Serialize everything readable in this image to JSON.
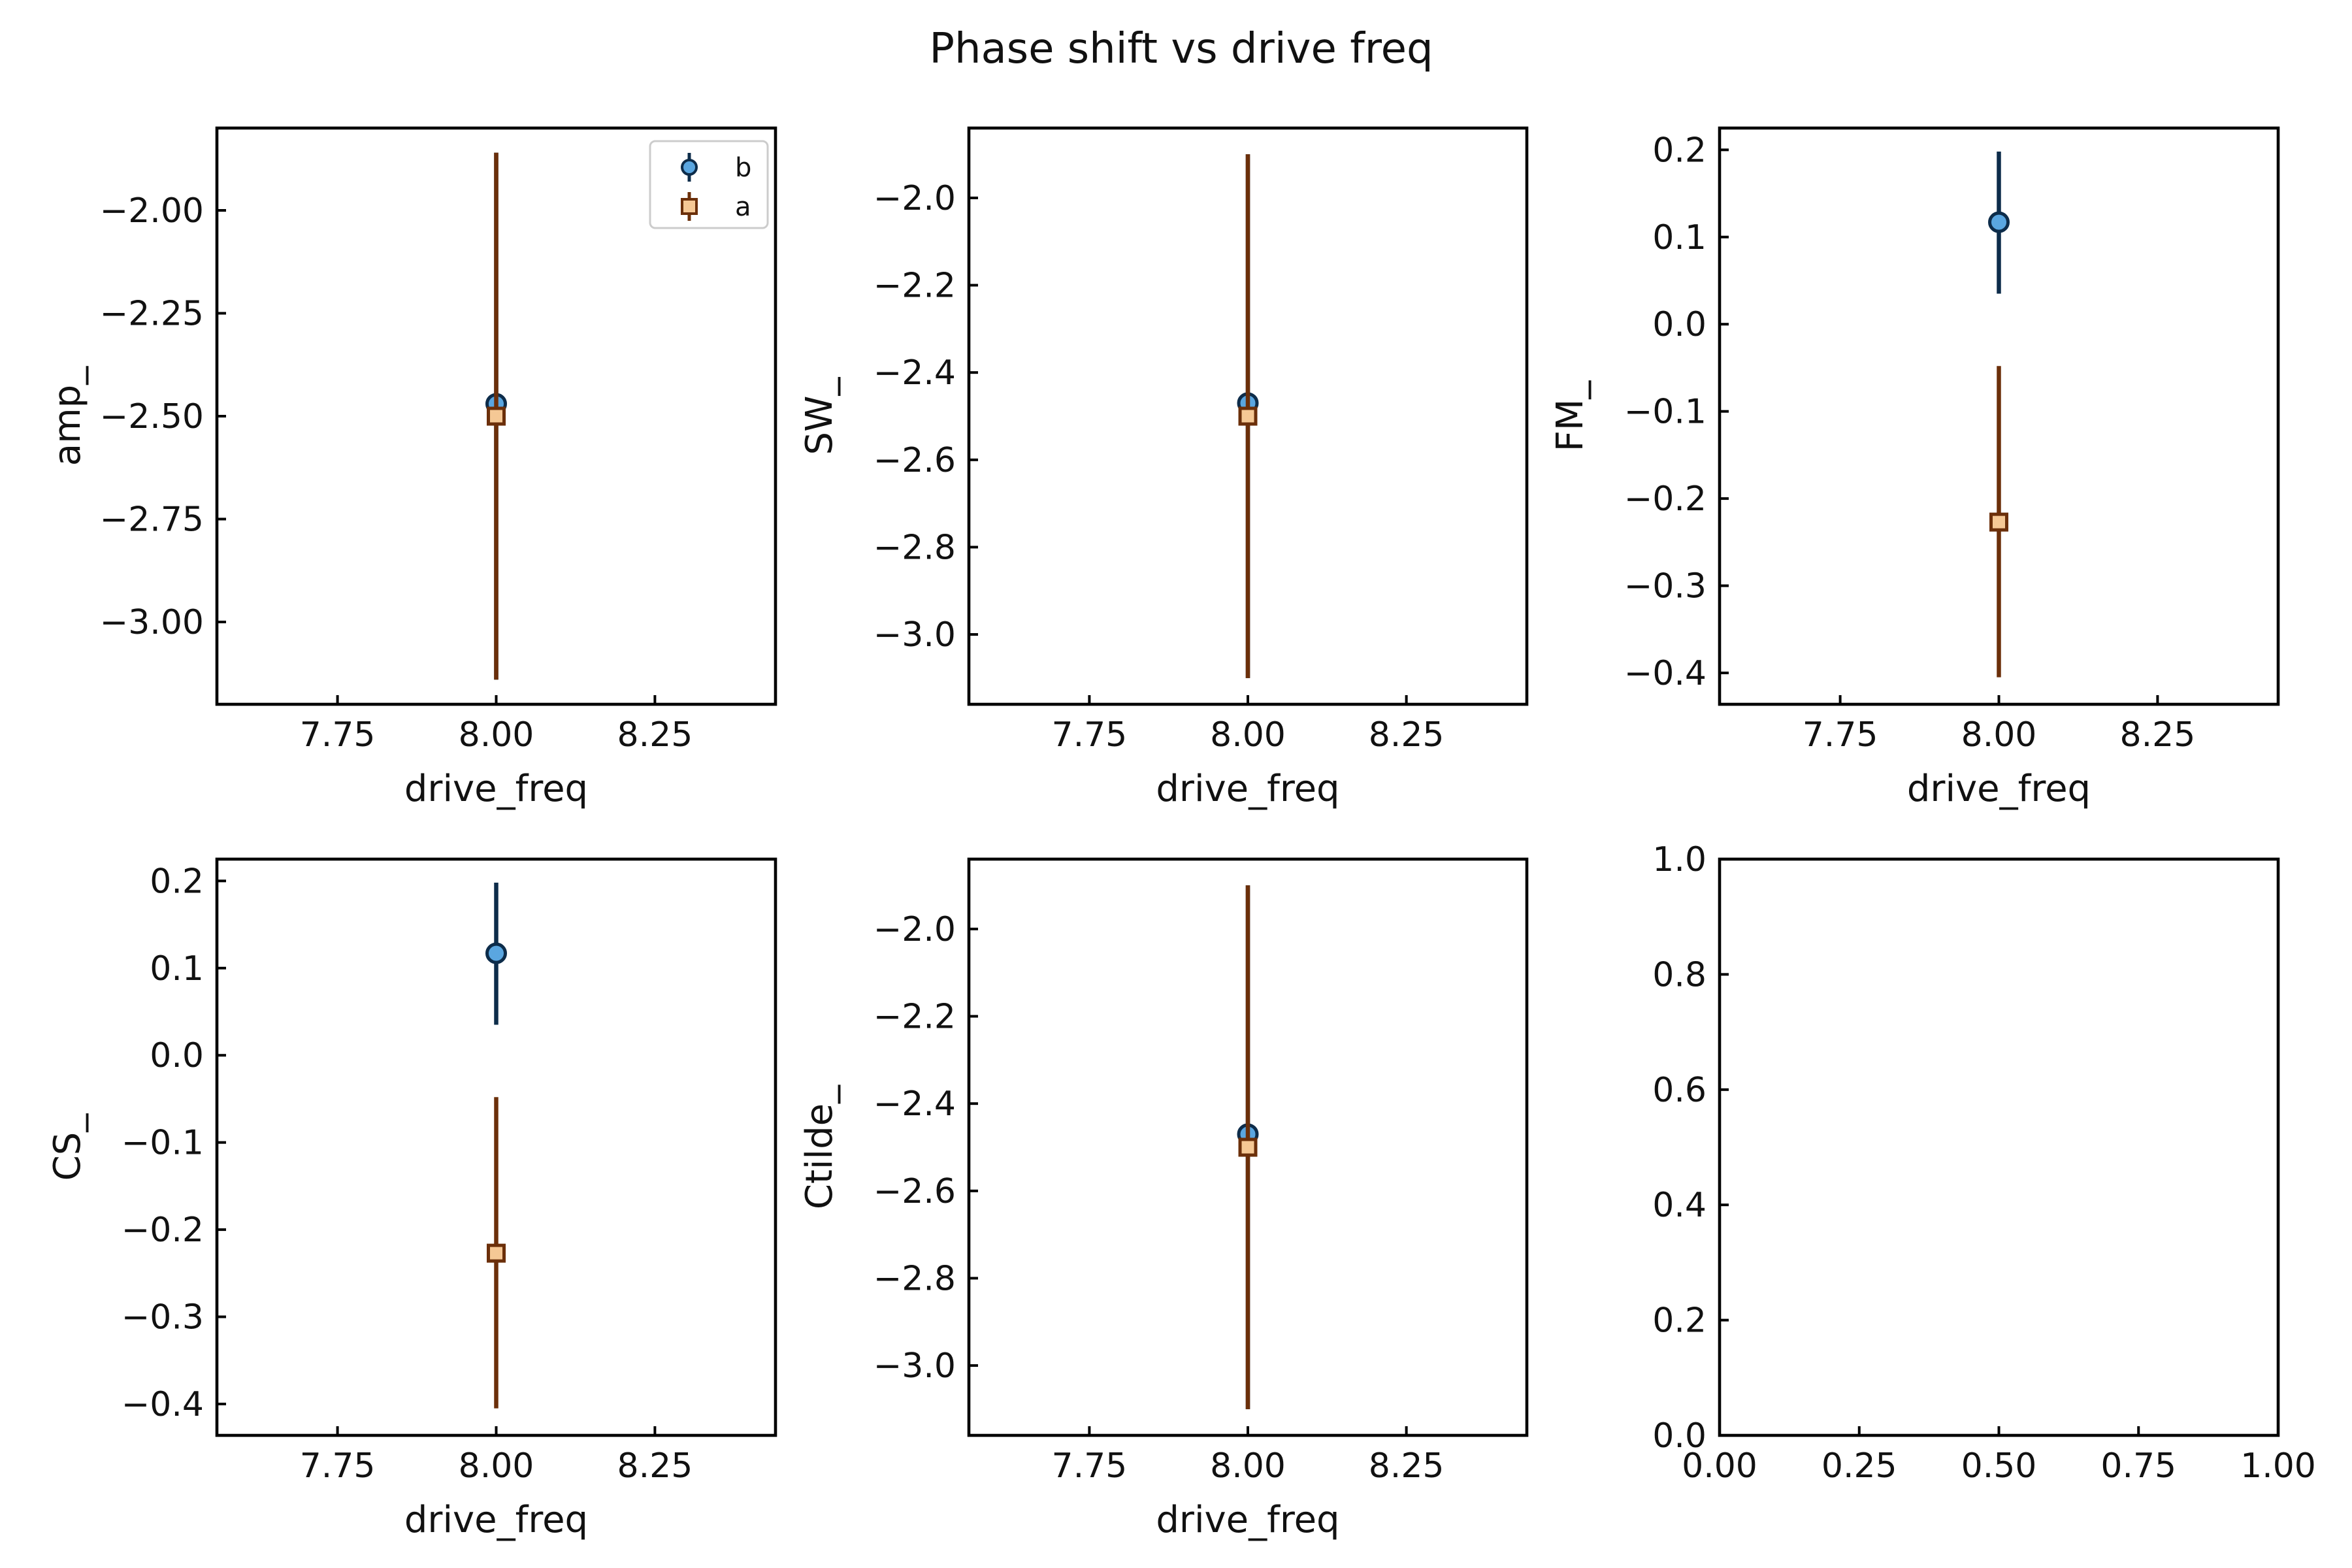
{
  "figure": {
    "title": "Phase shift vs drive freq"
  },
  "colors": {
    "series_b_line": "#0d2c4a",
    "series_b_fill": "#5aa6e0",
    "series_a_line": "#6b2f0a",
    "series_a_fill": "#f5c895",
    "axes": "#000000"
  },
  "chart_data": [
    {
      "type": "scatter",
      "xlabel": "drive_freq",
      "ylabel": "amp_",
      "xlim": [
        7.56,
        8.44
      ],
      "ylim": [
        -3.2,
        -1.8
      ],
      "xticks": [
        7.75,
        8.0,
        8.25
      ],
      "xtick_labels": [
        "7.75",
        "8.00",
        "8.25"
      ],
      "yticks": [
        -3.0,
        -2.75,
        -2.5,
        -2.25,
        -2.0
      ],
      "ytick_labels": [
        "−3.00",
        "−2.75",
        "−2.50",
        "−2.25",
        "−2.00"
      ],
      "legend": {
        "show": true,
        "placement": "top-right"
      },
      "series": [
        {
          "name": "b",
          "marker": "circle",
          "x": [
            8.0
          ],
          "y": [
            -2.47
          ],
          "yerr_low": [
            -3.14
          ],
          "yerr_high": [
            -1.86
          ]
        },
        {
          "name": "a",
          "marker": "square",
          "x": [
            8.0
          ],
          "y": [
            -2.5
          ],
          "yerr_low": [
            -3.14
          ],
          "yerr_high": [
            -1.86
          ]
        }
      ]
    },
    {
      "type": "scatter",
      "xlabel": "drive_freq",
      "ylabel": "SW_",
      "xlim": [
        7.56,
        8.44
      ],
      "ylim": [
        -3.16,
        -1.84
      ],
      "xticks": [
        7.75,
        8.0,
        8.25
      ],
      "xtick_labels": [
        "7.75",
        "8.00",
        "8.25"
      ],
      "yticks": [
        -3.0,
        -2.8,
        -2.6,
        -2.4,
        -2.2,
        -2.0
      ],
      "ytick_labels": [
        "−3.0",
        "−2.8",
        "−2.6",
        "−2.4",
        "−2.2",
        "−2.0"
      ],
      "legend": {
        "show": false
      },
      "series": [
        {
          "marker": "circle",
          "x": [
            8.0
          ],
          "y": [
            -2.47
          ],
          "yerr_low": [
            -3.1
          ],
          "yerr_high": [
            -1.9
          ]
        },
        {
          "marker": "square",
          "x": [
            8.0
          ],
          "y": [
            -2.5
          ],
          "yerr_low": [
            -3.1
          ],
          "yerr_high": [
            -1.9
          ]
        }
      ]
    },
    {
      "type": "scatter",
      "xlabel": "drive_freq",
      "ylabel": "FM_",
      "xlim": [
        7.56,
        8.44
      ],
      "ylim": [
        -0.436,
        0.225
      ],
      "xticks": [
        7.75,
        8.0,
        8.25
      ],
      "xtick_labels": [
        "7.75",
        "8.00",
        "8.25"
      ],
      "yticks": [
        -0.4,
        -0.3,
        -0.2,
        -0.1,
        0.0,
        0.1,
        0.2
      ],
      "ytick_labels": [
        "−0.4",
        "−0.3",
        "−0.2",
        "−0.1",
        "0.0",
        "0.1",
        "0.2"
      ],
      "legend": {
        "show": false
      },
      "series": [
        {
          "marker": "circle",
          "x": [
            8.0
          ],
          "y": [
            0.117
          ],
          "yerr_low": [
            0.035
          ],
          "yerr_high": [
            0.198
          ]
        },
        {
          "marker": "square",
          "x": [
            8.0
          ],
          "y": [
            -0.227
          ],
          "yerr_low": [
            -0.405
          ],
          "yerr_high": [
            -0.048
          ]
        }
      ]
    },
    {
      "type": "scatter",
      "xlabel": "drive_freq",
      "ylabel": "CS_",
      "xlim": [
        7.56,
        8.44
      ],
      "ylim": [
        -0.436,
        0.225
      ],
      "xticks": [
        7.75,
        8.0,
        8.25
      ],
      "xtick_labels": [
        "7.75",
        "8.00",
        "8.25"
      ],
      "yticks": [
        -0.4,
        -0.3,
        -0.2,
        -0.1,
        0.0,
        0.1,
        0.2
      ],
      "ytick_labels": [
        "−0.4",
        "−0.3",
        "−0.2",
        "−0.1",
        "0.0",
        "0.1",
        "0.2"
      ],
      "legend": {
        "show": false
      },
      "series": [
        {
          "marker": "circle",
          "x": [
            8.0
          ],
          "y": [
            0.117
          ],
          "yerr_low": [
            0.035
          ],
          "yerr_high": [
            0.198
          ]
        },
        {
          "marker": "square",
          "x": [
            8.0
          ],
          "y": [
            -0.227
          ],
          "yerr_low": [
            -0.405
          ],
          "yerr_high": [
            -0.048
          ]
        }
      ]
    },
    {
      "type": "scatter",
      "xlabel": "drive_freq",
      "ylabel": "Ctilde_",
      "xlim": [
        7.56,
        8.44
      ],
      "ylim": [
        -3.16,
        -1.84
      ],
      "xticks": [
        7.75,
        8.0,
        8.25
      ],
      "xtick_labels": [
        "7.75",
        "8.00",
        "8.25"
      ],
      "yticks": [
        -3.0,
        -2.8,
        -2.6,
        -2.4,
        -2.2,
        -2.0
      ],
      "ytick_labels": [
        "−3.0",
        "−2.8",
        "−2.6",
        "−2.4",
        "−2.2",
        "−2.0"
      ],
      "legend": {
        "show": false
      },
      "series": [
        {
          "marker": "circle",
          "x": [
            8.0
          ],
          "y": [
            -2.47
          ],
          "yerr_low": [
            -3.1
          ],
          "yerr_high": [
            -1.9
          ]
        },
        {
          "marker": "square",
          "x": [
            8.0
          ],
          "y": [
            -2.5
          ],
          "yerr_low": [
            -3.1
          ],
          "yerr_high": [
            -1.9
          ]
        }
      ]
    },
    {
      "type": "scatter",
      "xlabel": "",
      "ylabel": "",
      "xlim": [
        0.0,
        1.0
      ],
      "ylim": [
        0.0,
        1.0
      ],
      "xticks": [
        0.0,
        0.25,
        0.5,
        0.75,
        1.0
      ],
      "xtick_labels": [
        "0.00",
        "0.25",
        "0.50",
        "0.75",
        "1.00"
      ],
      "yticks": [
        0.0,
        0.2,
        0.4,
        0.6,
        0.8,
        1.0
      ],
      "ytick_labels": [
        "0.0",
        "0.2",
        "0.4",
        "0.6",
        "0.8",
        "1.0"
      ],
      "legend": {
        "show": false
      },
      "series": []
    }
  ]
}
